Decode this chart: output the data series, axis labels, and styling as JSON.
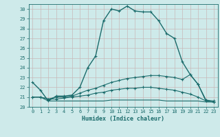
{
  "title": "",
  "xlabel": "Humidex (Indice chaleur)",
  "ylabel": "",
  "xlim": [
    -0.5,
    23.5
  ],
  "ylim": [
    20,
    30.5
  ],
  "yticks": [
    20,
    21,
    22,
    23,
    24,
    25,
    26,
    27,
    28,
    29,
    30
  ],
  "xticks": [
    0,
    1,
    2,
    3,
    4,
    5,
    6,
    7,
    8,
    9,
    10,
    11,
    12,
    13,
    14,
    15,
    16,
    17,
    18,
    19,
    20,
    21,
    22,
    23
  ],
  "bg_color": "#ceeaea",
  "line_color": "#1a6b6b",
  "grid_color": "#c8b8b8",
  "series": [
    {
      "x": [
        0,
        1,
        2,
        3,
        4,
        5,
        6,
        7,
        8,
        9,
        10,
        11,
        12,
        13,
        14,
        15,
        16,
        17,
        18,
        19,
        20,
        21,
        22,
        23
      ],
      "y": [
        22.5,
        21.7,
        20.6,
        21.1,
        21.1,
        21.2,
        22.0,
        24.0,
        25.2,
        28.8,
        30.0,
        29.8,
        30.3,
        29.8,
        29.7,
        29.7,
        28.8,
        27.5,
        27.0,
        24.6,
        23.3,
        22.3,
        20.6,
        20.5
      ],
      "marker": "+",
      "linestyle": "-",
      "linewidth": 1.0
    },
    {
      "x": [
        0,
        1,
        2,
        3,
        4,
        5,
        6,
        7,
        8,
        9,
        10,
        11,
        12,
        13,
        14,
        15,
        16,
        17,
        18,
        19,
        20,
        21,
        22,
        23
      ],
      "y": [
        21.0,
        21.0,
        20.8,
        21.0,
        21.0,
        21.1,
        21.4,
        21.7,
        21.9,
        22.2,
        22.5,
        22.7,
        22.9,
        23.0,
        23.1,
        23.2,
        23.2,
        23.1,
        23.0,
        22.8,
        23.3,
        22.3,
        20.7,
        20.6
      ],
      "marker": "+",
      "linestyle": "-",
      "linewidth": 0.8
    },
    {
      "x": [
        0,
        1,
        2,
        3,
        4,
        5,
        6,
        7,
        8,
        9,
        10,
        11,
        12,
        13,
        14,
        15,
        16,
        17,
        18,
        19,
        20,
        21,
        22,
        23
      ],
      "y": [
        21.0,
        21.0,
        20.8,
        20.8,
        20.9,
        21.0,
        21.1,
        21.2,
        21.4,
        21.5,
        21.7,
        21.8,
        21.9,
        21.9,
        22.0,
        22.0,
        21.9,
        21.8,
        21.7,
        21.5,
        21.3,
        21.0,
        20.6,
        20.5
      ],
      "marker": "+",
      "linestyle": "-",
      "linewidth": 0.8
    },
    {
      "x": [
        0,
        1,
        2,
        3,
        4,
        5,
        6,
        7,
        8,
        9,
        10,
        11,
        12,
        13,
        14,
        15,
        16,
        17,
        18,
        19,
        20,
        21,
        22,
        23
      ],
      "y": [
        21.0,
        21.0,
        20.6,
        20.6,
        20.6,
        20.6,
        20.6,
        20.6,
        20.6,
        20.6,
        20.7,
        20.7,
        20.7,
        20.7,
        20.7,
        20.7,
        20.7,
        20.6,
        20.6,
        20.6,
        20.6,
        20.6,
        20.5,
        20.5
      ],
      "marker": null,
      "linestyle": "-",
      "linewidth": 0.8
    }
  ],
  "tick_fontsize": 5,
  "xlabel_fontsize": 6,
  "tick_color": "#1a6b6b",
  "spine_color": "#1a6b6b"
}
